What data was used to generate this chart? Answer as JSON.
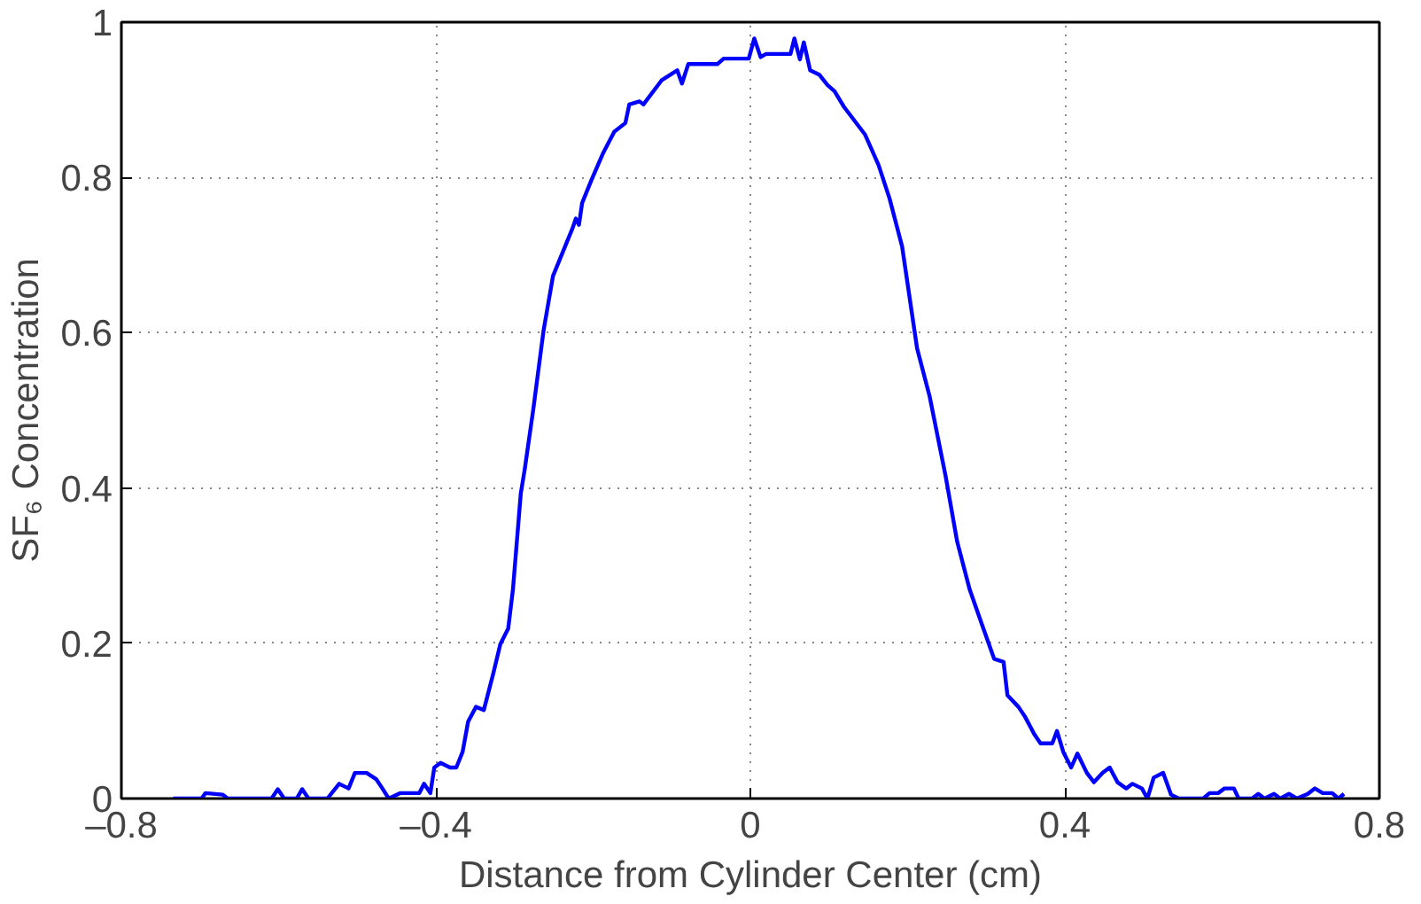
{
  "chart_data": {
    "type": "line",
    "xlabel": "Distance from Cylinder Center (cm)",
    "ylabel": "SF₆ Concentration",
    "xlim": [
      -0.8,
      0.8
    ],
    "ylim": [
      0,
      1
    ],
    "xticks": [
      {
        "value": -0.8,
        "label": "–0.8"
      },
      {
        "value": -0.4,
        "label": "–0.4"
      },
      0,
      0.4,
      0.8
    ],
    "yticks": [
      0,
      0.2,
      0.4,
      0.6,
      0.8,
      1
    ],
    "grid": true,
    "line_style": "solid",
    "marker": "none",
    "series": [
      {
        "color": "#0000ff",
        "x": [
          -0.734,
          -0.698,
          -0.693,
          -0.671,
          -0.665,
          -0.609,
          -0.601,
          -0.593,
          -0.577,
          -0.57,
          -0.562,
          -0.538,
          -0.523,
          -0.511,
          -0.503,
          -0.488,
          -0.476,
          -0.468,
          -0.46,
          -0.445,
          -0.421,
          -0.415,
          -0.407,
          -0.402,
          -0.394,
          -0.382,
          -0.374,
          -0.366,
          -0.359,
          -0.349,
          -0.339,
          -0.327,
          -0.318,
          -0.308,
          -0.302,
          -0.292,
          -0.287,
          -0.276,
          -0.263,
          -0.251,
          -0.226,
          -0.222,
          -0.218,
          -0.214,
          -0.202,
          -0.187,
          -0.173,
          -0.159,
          -0.154,
          -0.141,
          -0.136,
          -0.113,
          -0.093,
          -0.087,
          -0.079,
          -0.042,
          -0.034,
          -0.002,
          0.005,
          0.013,
          0.02,
          0.051,
          0.056,
          0.063,
          0.068,
          0.076,
          0.088,
          0.098,
          0.107,
          0.119,
          0.146,
          0.163,
          0.177,
          0.193,
          0.212,
          0.228,
          0.248,
          0.263,
          0.279,
          0.295,
          0.31,
          0.322,
          0.327,
          0.341,
          0.349,
          0.361,
          0.369,
          0.384,
          0.39,
          0.398,
          0.408,
          0.416,
          0.428,
          0.437,
          0.448,
          0.457,
          0.467,
          0.478,
          0.486,
          0.498,
          0.505,
          0.513,
          0.525,
          0.535,
          0.545,
          0.576,
          0.584,
          0.595,
          0.603,
          0.615,
          0.621,
          0.638,
          0.646,
          0.654,
          0.666,
          0.674,
          0.685,
          0.695,
          0.709,
          0.718,
          0.728,
          0.74,
          0.748,
          0.755
        ],
        "values": [
          0,
          0,
          0.007,
          0.005,
          0,
          0,
          0.012,
          0,
          0,
          0.012,
          0,
          0,
          0.019,
          0.013,
          0.033,
          0.033,
          0.025,
          0.013,
          0,
          0.007,
          0.007,
          0.019,
          0.007,
          0.04,
          0.046,
          0.04,
          0.04,
          0.06,
          0.099,
          0.118,
          0.114,
          0.161,
          0.199,
          0.219,
          0.269,
          0.393,
          0.424,
          0.502,
          0.603,
          0.673,
          0.735,
          0.747,
          0.739,
          0.767,
          0.797,
          0.832,
          0.859,
          0.87,
          0.894,
          0.898,
          0.894,
          0.925,
          0.938,
          0.921,
          0.946,
          0.946,
          0.953,
          0.953,
          0.979,
          0.955,
          0.959,
          0.959,
          0.979,
          0.952,
          0.974,
          0.938,
          0.932,
          0.919,
          0.911,
          0.891,
          0.855,
          0.816,
          0.773,
          0.711,
          0.58,
          0.518,
          0.417,
          0.331,
          0.269,
          0.223,
          0.18,
          0.176,
          0.133,
          0.118,
          0.106,
          0.083,
          0.071,
          0.071,
          0.087,
          0.06,
          0.04,
          0.058,
          0.033,
          0.021,
          0.033,
          0.04,
          0.021,
          0.013,
          0.019,
          0.013,
          0,
          0.027,
          0.033,
          0.005,
          0,
          0,
          0.007,
          0.007,
          0.013,
          0.013,
          0,
          0,
          0.006,
          0,
          0.006,
          0,
          0.006,
          0,
          0.006,
          0.013,
          0.007,
          0.007,
          0,
          0.006
        ]
      }
    ]
  }
}
